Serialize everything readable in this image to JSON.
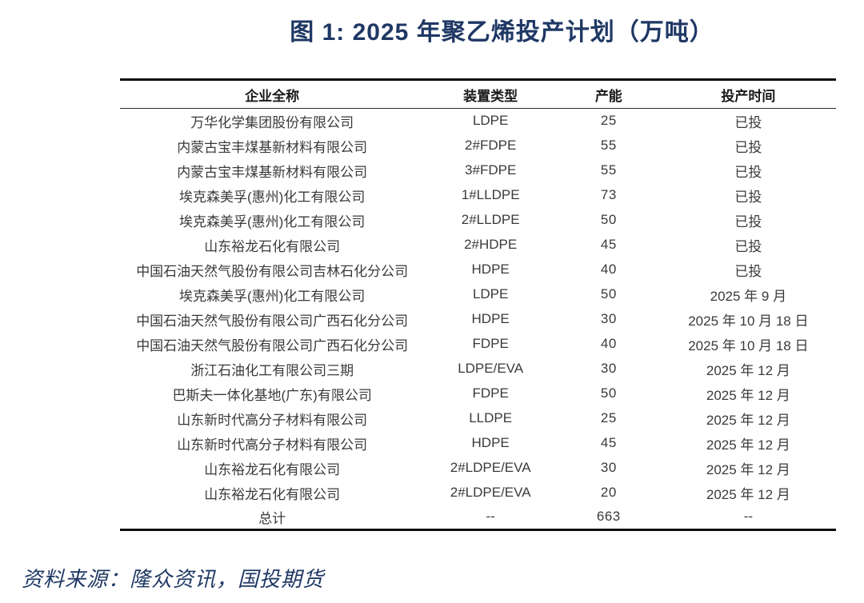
{
  "title": "图 1: 2025 年聚乙烯投产计划（万吨）",
  "source": "资料来源：隆众资讯，国投期货",
  "colors": {
    "title_text": "#1F3864",
    "source_text": "#1F3864",
    "header_text": "#1A1A1A",
    "body_text": "#3A3A3A",
    "rule_lines": "#0D0D0D",
    "background": "#FFFFFF"
  },
  "chart_data": {
    "type": "table",
    "title": "图 1: 2025 年聚乙烯投产计划（万吨）",
    "unit": "万吨",
    "columns": [
      "企业全称",
      "装置类型",
      "产能",
      "投产时间"
    ],
    "rows": [
      [
        "万华化学集团股份有限公司",
        "LDPE",
        "25",
        "已投"
      ],
      [
        "内蒙古宝丰煤基新材料有限公司",
        "2#FDPE",
        "55",
        "已投"
      ],
      [
        "内蒙古宝丰煤基新材料有限公司",
        "3#FDPE",
        "55",
        "已投"
      ],
      [
        "埃克森美孚(惠州)化工有限公司",
        "1#LLDPE",
        "73",
        "已投"
      ],
      [
        "埃克森美孚(惠州)化工有限公司",
        "2#LLDPE",
        "50",
        "已投"
      ],
      [
        "山东裕龙石化有限公司",
        "2#HDPE",
        "45",
        "已投"
      ],
      [
        "中国石油天然气股份有限公司吉林石化分公司",
        "HDPE",
        "40",
        "已投"
      ],
      [
        "埃克森美孚(惠州)化工有限公司",
        "LDPE",
        "50",
        "2025 年 9 月"
      ],
      [
        "中国石油天然气股份有限公司广西石化分公司",
        "HDPE",
        "30",
        "2025 年 10 月 18 日"
      ],
      [
        "中国石油天然气股份有限公司广西石化分公司",
        "FDPE",
        "40",
        "2025 年 10 月 18 日"
      ],
      [
        "浙江石油化工有限公司三期",
        "LDPE/EVA",
        "30",
        "2025 年 12 月"
      ],
      [
        "巴斯夫一体化基地(广东)有限公司",
        "FDPE",
        "50",
        "2025 年 12 月"
      ],
      [
        "山东新时代高分子材料有限公司",
        "LLDPE",
        "25",
        "2025 年 12 月"
      ],
      [
        "山东新时代高分子材料有限公司",
        "HDPE",
        "45",
        "2025 年 12 月"
      ],
      [
        "山东裕龙石化有限公司",
        "2#LDPE/EVA",
        "30",
        "2025 年 12 月"
      ],
      [
        "山东裕龙石化有限公司",
        "2#LDPE/EVA",
        "20",
        "2025 年 12 月"
      ],
      [
        "总计",
        "--",
        "663",
        "--"
      ]
    ],
    "total_capacity": 663
  }
}
